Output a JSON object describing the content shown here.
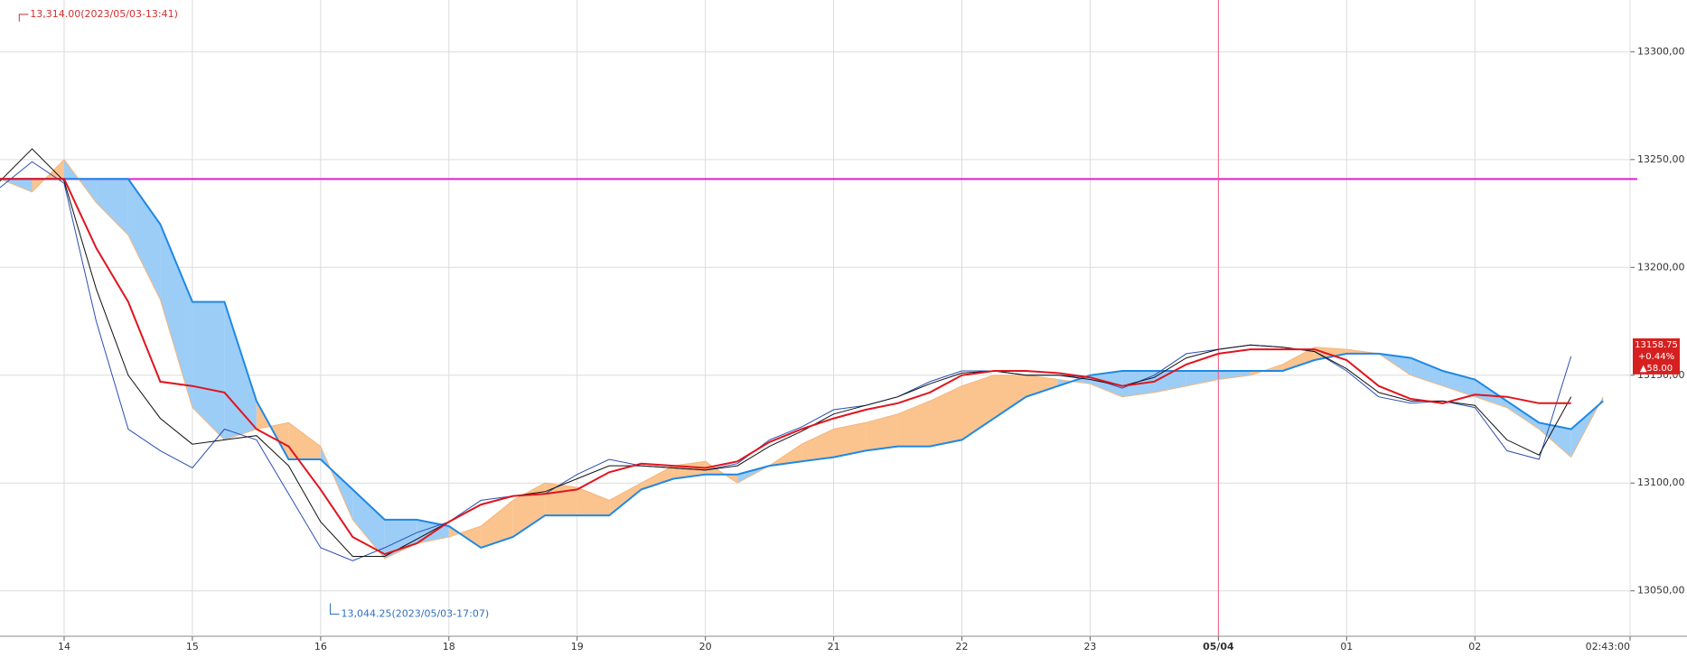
{
  "chart_data": {
    "type": "line",
    "x": [
      0,
      1,
      2,
      3,
      4,
      5,
      6,
      7,
      8,
      9,
      10,
      11,
      12,
      13,
      14,
      15,
      16,
      17,
      18,
      19,
      20,
      21,
      22,
      23,
      24,
      25,
      26,
      27,
      28,
      29,
      30,
      31,
      32,
      33,
      34,
      35,
      36,
      37,
      38,
      39,
      40,
      41,
      42,
      43,
      44,
      45,
      46,
      47,
      48,
      49,
      50
    ],
    "xlim": [
      0,
      50.84
    ],
    "xticks": [
      {
        "value": 2,
        "label": "14"
      },
      {
        "value": 6,
        "label": "15"
      },
      {
        "value": 10,
        "label": "16"
      },
      {
        "value": 14,
        "label": "18"
      },
      {
        "value": 18,
        "label": "19"
      },
      {
        "value": 22,
        "label": "20"
      },
      {
        "value": 26,
        "label": "21"
      },
      {
        "value": 30,
        "label": "22"
      },
      {
        "value": 34,
        "label": "23"
      },
      {
        "value": 38,
        "label": "05/04"
      },
      {
        "value": 42,
        "label": "01"
      },
      {
        "value": 46,
        "label": "02"
      },
      {
        "value": 50.84,
        "label": "02:43:00"
      }
    ],
    "ylim": [
      13030,
      13324
    ],
    "yticks": [
      {
        "value": 13050,
        "label": "13050,00"
      },
      {
        "value": 13100,
        "label": "13100,00"
      },
      {
        "value": 13150,
        "label": "13150,00"
      },
      {
        "value": 13200,
        "label": "13200,00"
      },
      {
        "value": 13250,
        "label": "13250,00"
      },
      {
        "value": 13300,
        "label": "13300,00"
      }
    ],
    "grid": true,
    "series": [
      {
        "color": "#2a4fb0",
        "width": 1,
        "values": [
          13237,
          13249,
          13239,
          13175,
          13125,
          13115,
          13107,
          13125,
          13120,
          13095,
          13070,
          13064,
          13070,
          13077,
          13082,
          13092,
          13094,
          13095,
          13104,
          13111,
          13108,
          13107,
          13106,
          13109,
          13120,
          13126,
          13134,
          13136,
          13140,
          13147,
          13152,
          13152,
          13150,
          13150,
          13149,
          13144,
          13150,
          13160,
          13162,
          13164,
          13163,
          13161,
          13152,
          13140,
          13137,
          13138,
          13135,
          13115,
          13111,
          13158.75,
          null
        ]
      },
      {
        "color": "#111111",
        "width": 1,
        "values": [
          13240,
          13255,
          13240,
          13190,
          13150,
          13130,
          13118,
          13120,
          13122,
          13108,
          13082,
          13066,
          13066,
          13074,
          13082,
          13090,
          13094,
          13096,
          13102,
          13108,
          13108,
          13107,
          13106,
          13108,
          13117,
          13124,
          13132,
          13136,
          13140,
          13146,
          13151,
          13152,
          13150,
          13150,
          13148,
          13145,
          13149,
          13158,
          13162,
          13164,
          13163,
          13161,
          13153,
          13142,
          13138,
          13138,
          13136,
          13120,
          13113,
          13140,
          null
        ]
      },
      {
        "color": "#e0141e",
        "width": 2,
        "values": [
          13241,
          13241,
          13241,
          13209,
          13184,
          13147,
          13145,
          13142,
          13125,
          13117,
          13097,
          13075,
          13067,
          13072,
          13082,
          13090,
          13094,
          13095,
          13097,
          13105,
          13109,
          13108,
          13107,
          13110,
          13119,
          13125,
          13130,
          13134,
          13137,
          13142,
          13150,
          13152,
          13152,
          13151,
          13149,
          13145,
          13147,
          13155,
          13160,
          13162,
          13162,
          13162,
          13157,
          13145,
          13139,
          13137,
          13141,
          13140,
          13137,
          13137,
          null
        ]
      },
      {
        "color": "#f5b57a",
        "width": 1,
        "values": [
          13241,
          13235,
          13250,
          13230,
          13215,
          13185,
          13135,
          13120,
          13125,
          13128,
          13117,
          13083,
          13065,
          13072,
          13075,
          13080,
          13092,
          13100,
          13098,
          13092,
          13100,
          13108,
          13110,
          13100,
          13108,
          13118,
          13125,
          13128,
          13132,
          13138,
          13145,
          13150,
          13150,
          13148,
          13146,
          13140,
          13142,
          13145,
          13148,
          13150,
          13155,
          13163,
          13162,
          13160,
          13150,
          13145,
          13140,
          13135,
          13125,
          13112,
          13140
        ]
      },
      {
        "color": "#1e88e5",
        "width": 2,
        "values": [
          13241,
          13241,
          13241,
          13241,
          13241,
          13220,
          13184,
          13184,
          13138,
          13111,
          13111,
          13097,
          13083,
          13083,
          13080,
          13070,
          13075,
          13085,
          13085,
          13085,
          13097,
          13102,
          13104,
          13104,
          13108,
          13110,
          13112,
          13115,
          13117,
          13117,
          13120,
          13130,
          13140,
          13145,
          13150,
          13152,
          13152,
          13152,
          13152,
          13152,
          13152,
          13157,
          13160,
          13160,
          13158,
          13152,
          13148,
          13138,
          13128,
          13125,
          13138
        ]
      }
    ],
    "cloud": {
      "up_color": "#fbc48e",
      "down_color": "#9ccdf7"
    },
    "reference_line": {
      "value": 13241,
      "color": "#e020d0"
    },
    "day_line_x": 38,
    "annotations": [
      {
        "label": "13,314.00(2023/05/03-13:41)",
        "x": 0.6,
        "value": 13314,
        "color": "#d03030"
      },
      {
        "label": "13,044.25(2023/05/03-17:07)",
        "x": 10.3,
        "value": 13044.25,
        "color": "#2f6fc0"
      }
    ],
    "price_box": [
      "13158.75",
      "+0.44%",
      "▲58.00"
    ]
  }
}
